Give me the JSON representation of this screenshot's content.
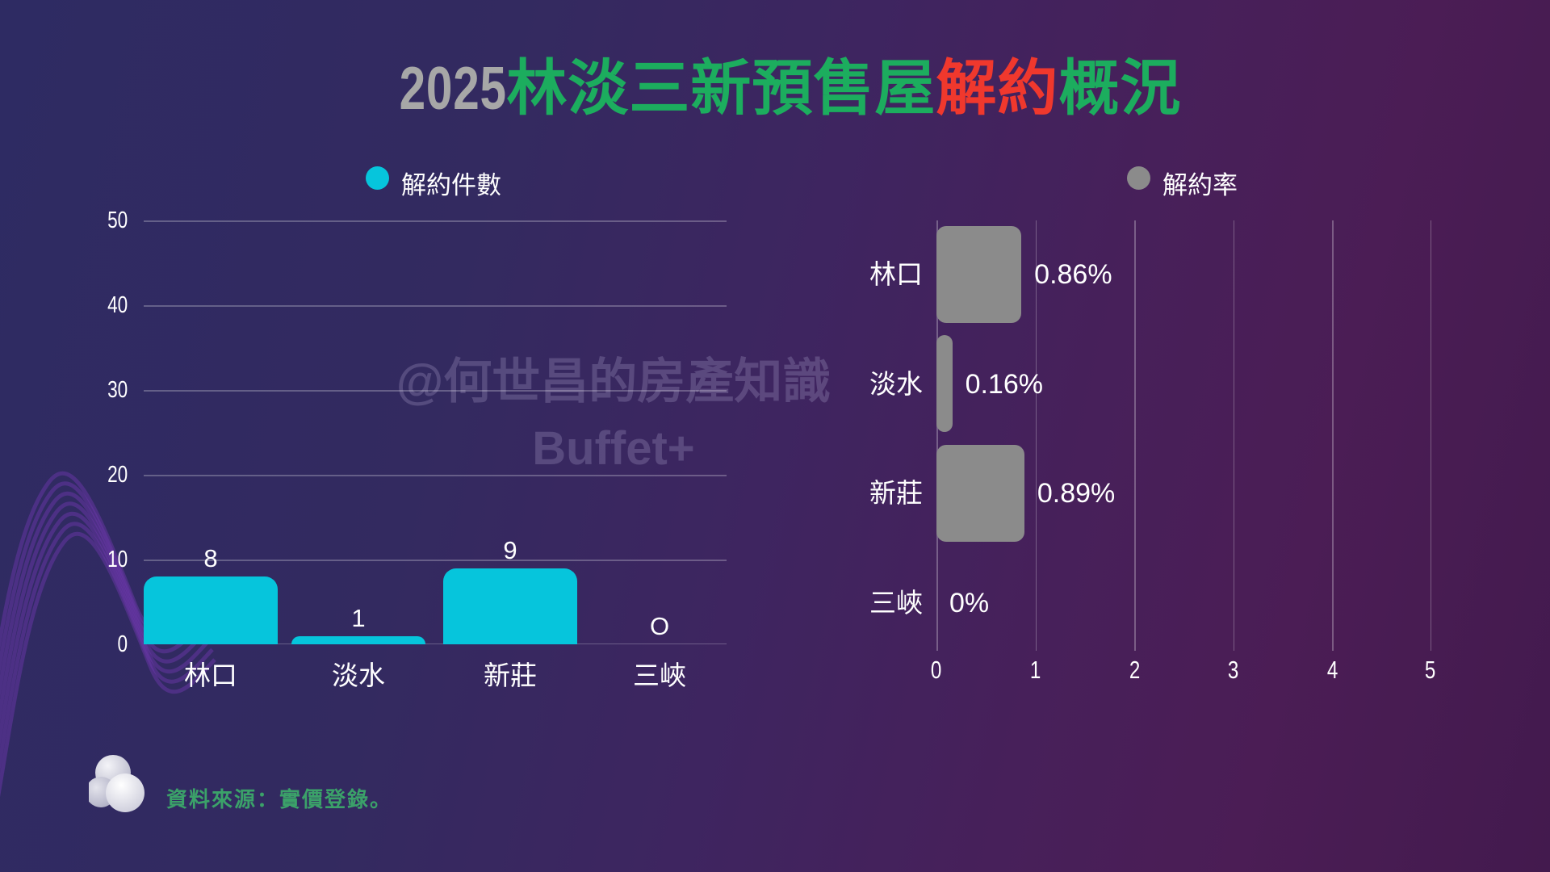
{
  "title": {
    "year": "2025",
    "main": "林淡三新預售屋",
    "highlight": "解約",
    "tail": "概況"
  },
  "colors": {
    "count_bar": "#06C5DC",
    "rate_bar": "#8B8B8B",
    "title_year": "#A7A7A7",
    "title_green": "#1CAD5E",
    "title_red": "#F0382D",
    "source_green": "#3BA169",
    "axis_text": "#FFFFFF"
  },
  "left_chart": {
    "legend": "解約件數",
    "y_ticks": [
      "50",
      "40",
      "30",
      "20",
      "10",
      "0"
    ],
    "categories": [
      "林口",
      "淡水",
      "新莊",
      "三峽"
    ],
    "value_labels": [
      "8",
      "1",
      "9",
      "O"
    ]
  },
  "right_chart": {
    "legend": "解約率",
    "x_ticks": [
      "0",
      "1",
      "2",
      "3",
      "4",
      "5"
    ],
    "categories": [
      "林口",
      "淡水",
      "新莊",
      "三峽"
    ],
    "value_labels": [
      "0.86%",
      "0.16%",
      "0.89%",
      "0%"
    ]
  },
  "watermark": {
    "line1": "@何世昌的房產知識",
    "line2": "Buffet+"
  },
  "source": {
    "text": "資料來源：實價登錄。"
  },
  "chart_data": [
    {
      "type": "bar",
      "orientation": "vertical",
      "title": "解約件數",
      "categories": [
        "林口",
        "淡水",
        "新莊",
        "三峽"
      ],
      "values": [
        8,
        1,
        9,
        0
      ],
      "value_labels": [
        "8",
        "1",
        "9",
        "O"
      ],
      "xlabel": "",
      "ylabel": "",
      "ylim": [
        0,
        50
      ],
      "yticks": [
        0,
        10,
        20,
        30,
        40,
        50
      ],
      "grid": "horizontal",
      "legend": [
        "解約件數"
      ],
      "legend_position": "top",
      "bar_color": "#06C5DC"
    },
    {
      "type": "bar",
      "orientation": "horizontal",
      "title": "解約率",
      "categories": [
        "林口",
        "淡水",
        "新莊",
        "三峽"
      ],
      "values": [
        0.86,
        0.16,
        0.89,
        0
      ],
      "value_labels": [
        "0.86%",
        "0.16%",
        "0.89%",
        "0%"
      ],
      "unit": "%",
      "xlabel": "",
      "ylabel": "",
      "xlim": [
        0,
        5
      ],
      "xticks": [
        0,
        1,
        2,
        3,
        4,
        5
      ],
      "grid": "vertical",
      "legend": [
        "解約率"
      ],
      "legend_position": "top",
      "bar_color": "#8B8B8B"
    }
  ]
}
